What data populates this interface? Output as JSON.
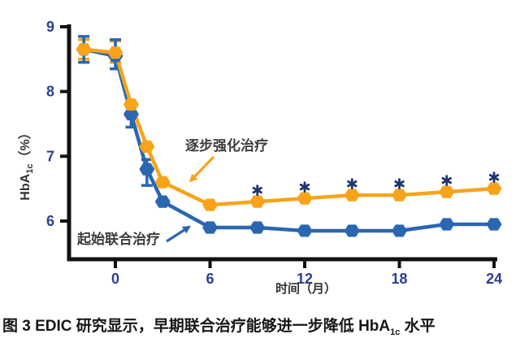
{
  "figure": {
    "caption": {
      "pre": "图 3 EDIC 研究显示，早期联合治疗能够进一步降低 HbA",
      "sub": "1c",
      "post": " 水平"
    }
  },
  "chart_data": {
    "type": "line",
    "title": "",
    "xlabel": "时间（月）",
    "ylabel": {
      "pre": "HbA",
      "sub": "1c",
      "post": "（%）"
    },
    "x": [
      -2,
      0,
      1,
      2,
      3,
      6,
      9,
      12,
      15,
      18,
      21,
      24
    ],
    "x_ticks": [
      0,
      6,
      12,
      18,
      24
    ],
    "y_ticks": [
      6,
      7,
      8,
      9
    ],
    "xlim": [
      -3,
      24.5
    ],
    "ylim": [
      5.4,
      9.05
    ],
    "grid": false,
    "legend_position": "inline-annotations",
    "marker": "hexagon",
    "axis_color": "#111111",
    "tick_label_color": "#2D3E93",
    "significance_color": "#1D3671",
    "significance_symbol": "*",
    "series": [
      {
        "id": "stepwise",
        "name": "逐步强化治疗",
        "color": "#F7A41A",
        "values": [
          8.65,
          8.6,
          7.8,
          7.15,
          6.6,
          6.25,
          6.3,
          6.35,
          6.4,
          6.4,
          6.45,
          6.5
        ],
        "error_bars": [
          {
            "x": -2,
            "low": 8.5,
            "high": 8.8
          },
          {
            "x": 0,
            "low": 8.45,
            "high": 8.78
          }
        ],
        "significance_marks": [
          9,
          12,
          15,
          18,
          21,
          24
        ]
      },
      {
        "id": "initial",
        "name": "起始联合治疗",
        "color": "#2B66B1",
        "values": [
          8.65,
          8.55,
          7.65,
          6.8,
          6.3,
          5.9,
          5.9,
          5.85,
          5.85,
          5.85,
          5.95,
          5.95
        ],
        "error_bars": [
          {
            "x": -2,
            "low": 8.45,
            "high": 8.85
          },
          {
            "x": 0,
            "low": 8.35,
            "high": 8.8
          },
          {
            "x": 1,
            "low": 7.45,
            "high": 7.82
          },
          {
            "x": 2,
            "low": 6.55,
            "high": 6.95
          }
        ],
        "significance_marks": []
      }
    ],
    "annotations": [
      {
        "id": "stepwise",
        "label": "逐步强化治疗"
      },
      {
        "id": "initial",
        "label": "起始联合治疗"
      }
    ]
  }
}
